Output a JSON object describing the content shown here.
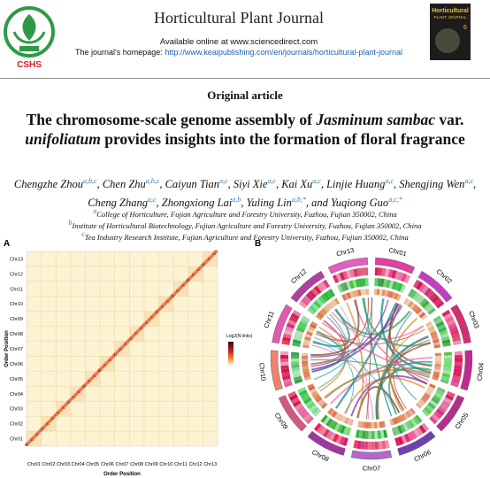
{
  "header": {
    "logo_text": "CSHS",
    "journal": "Horticultural Plant Journal",
    "available": "Available online at www.sciencedirect.com",
    "homepage_label": "The journal's homepage:",
    "homepage_url": "http://www.keaipublishing.com/en/journals/horticultural-plant-journal",
    "cover_title": "Horticultural",
    "cover_subtitle": "PLANT JOURNAL",
    "cover_issue": "6"
  },
  "article": {
    "type": "Original article",
    "title": [
      {
        "text": "The chromosome-scale genome assembly of ",
        "italic": false
      },
      {
        "text": "Jasminum sambac",
        "italic": true
      },
      {
        "text": " var. ",
        "italic": false
      },
      {
        "text": "unifoliatum",
        "italic": true
      },
      {
        "text": " provides insights into the formation of floral fragrance",
        "italic": false
      }
    ],
    "authors": [
      {
        "name": "Chengzhe Zhou",
        "sup": "a,b,c"
      },
      {
        "name": "Chen Zhu",
        "sup": "a,b,c"
      },
      {
        "name": "Caiyun Tian",
        "sup": "a,c"
      },
      {
        "name": "Siyi Xie",
        "sup": "a,c"
      },
      {
        "name": "Kai Xu",
        "sup": "a,c"
      },
      {
        "name": "Linjie Huang",
        "sup": "a,c"
      },
      {
        "name": "Shengjing Wen",
        "sup": "a,c"
      },
      {
        "name": "Cheng Zhang",
        "sup": "a,c"
      },
      {
        "name": "Zhongxiong Lai",
        "sup": "a,b"
      },
      {
        "name": "Yuling Lin",
        "sup": "a,b,*"
      },
      {
        "name": "Yuqiong Guo",
        "sup": "a,c,*"
      }
    ],
    "conjunction": "and",
    "affiliations": [
      {
        "sup": "a",
        "text": "College of Horticulture, Fujian Agriculture and Forestry University, Fuzhou, Fujian 350002, China"
      },
      {
        "sup": "b",
        "text": "Institute of Horticultural Biotechnology, Fujian Agriculture and Forestry University, Fuzhou, Fujian 350002, China"
      },
      {
        "sup": "c",
        "text": "Tea Industry Research Institute, Fujian Agriculture and Forestry University, Fuzhou, Fujian 350002, China"
      }
    ]
  },
  "figure": {
    "panel_a": {
      "label": "A",
      "y_labels": [
        "Chr13",
        "Chr12",
        "Chr11",
        "Chr10",
        "Chr09",
        "Chr08",
        "Chr07",
        "Chr06",
        "Chr05",
        "Chr04",
        "Chr03",
        "Chr02",
        "Chr01"
      ],
      "x_labels": [
        "Chr01",
        "Chr02",
        "Chr03",
        "Chr04",
        "Chr05",
        "Chr06",
        "Chr07",
        "Chr08",
        "Chr09",
        "Chr10",
        "Chr11",
        "Chr12",
        "Chr13"
      ],
      "x_axis": "Order Position",
      "y_axis": "Order Position",
      "legend_title": "Log2(N links)"
    },
    "panel_b": {
      "label": "B",
      "chromosomes": [
        "Chr01",
        "Chr02",
        "Chr03",
        "Chr04",
        "Chr05",
        "Chr06",
        "Chr07",
        "Chr08",
        "Chr09",
        "Chr10",
        "Chr11",
        "Chr12",
        "Chr13"
      ]
    }
  }
}
